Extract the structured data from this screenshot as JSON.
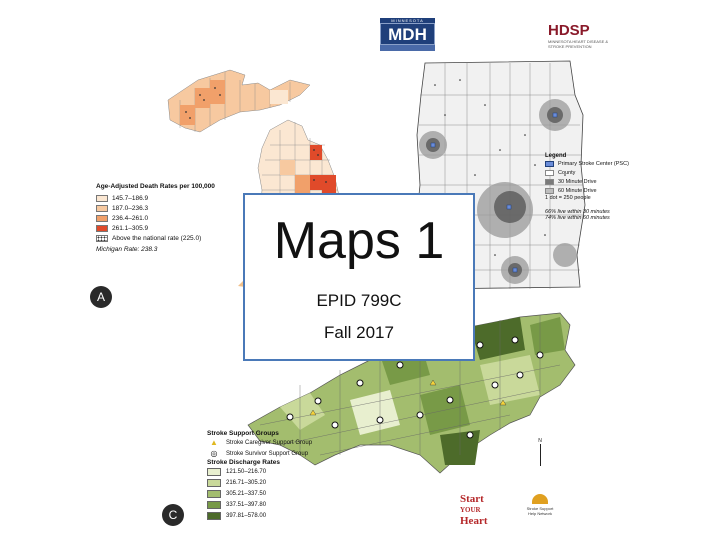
{
  "logos": {
    "mdh": {
      "top_text": "MINNESOTA",
      "main_text": "MDH"
    },
    "hdsp": {
      "mark": "HDSP",
      "sub": "MINNESOTA HEART DISEASE & STROKE PREVENTION"
    },
    "start_your_heart": {
      "line1": "Start",
      "line2": "YOUR",
      "line3": "Heart"
    },
    "nc_partner": {
      "text": "Stroke Support Help Network"
    }
  },
  "michigan_map": {
    "legend_title": "Age-Adjusted Death Rates per 100,000",
    "classes": [
      {
        "label": "145.7–186.9",
        "color": "#fbe7d2"
      },
      {
        "label": "187.0–236.3",
        "color": "#f7c9a0"
      },
      {
        "label": "236.4–261.0",
        "color": "#f1a06a"
      },
      {
        "label": "261.1–305.9",
        "color": "#e04a2a"
      }
    ],
    "above_label": "Above the national rate (225.0)",
    "state_rate": "Michigan Rate: 238.3"
  },
  "minnesota_map": {
    "legend_title": "Legend",
    "items": [
      {
        "label": "Primary Stroke Center (PSC)",
        "color": "#ffffff"
      },
      {
        "label": "County",
        "color": "#ffffff"
      },
      {
        "label": "30 Minute Drive",
        "color": "#7a7a7a"
      },
      {
        "label": "60 Minute Drive",
        "color": "#bdbdbd"
      }
    ],
    "dot_note": "1 dot = 250 people",
    "coverage_30": "66% live within 30 minutes",
    "coverage_60": "74% live within 60 minutes"
  },
  "nc_map": {
    "groups_title": "Stroke Support Groups",
    "groups": [
      {
        "label": "Stroke Caregiver Support Group",
        "marker": "▲"
      },
      {
        "label": "Stroke Survivor Support Group",
        "marker": "◎"
      }
    ],
    "rates_title": "Stroke Discharge Rates",
    "classes": [
      {
        "label": "121.50–216.70",
        "color": "#e8efcf"
      },
      {
        "label": "216.71–305.20",
        "color": "#c9d99a"
      },
      {
        "label": "305.21–337.50",
        "color": "#a3bd6e"
      },
      {
        "label": "337.51–397.80",
        "color": "#789a47"
      },
      {
        "label": "397.81–578.00",
        "color": "#4d6b2a"
      }
    ],
    "north_label": "N"
  },
  "panel_labels": {
    "a": "A",
    "c": "C"
  },
  "title_card": {
    "title": "Maps 1",
    "course": "EPID 799C",
    "term": "Fall 2017"
  }
}
